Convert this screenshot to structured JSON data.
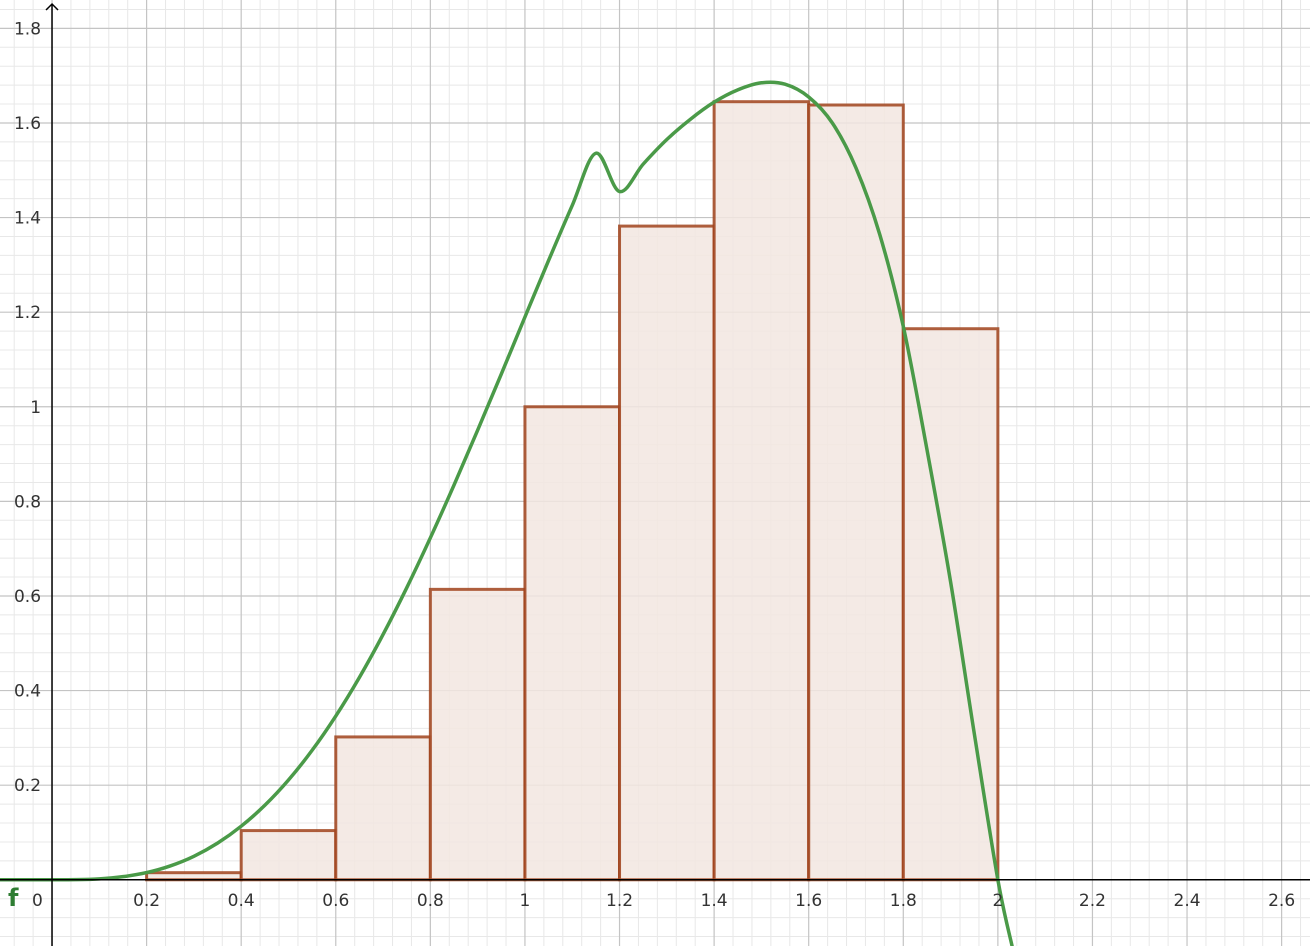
{
  "chart_data": {
    "type": "bar",
    "subtype": "riemann-sum-with-function",
    "function_label": "f",
    "origin_label": "0",
    "x_ticks": [
      "0.2",
      "0.4",
      "0.6",
      "0.8",
      "1",
      "1.2",
      "1.4",
      "1.6",
      "1.8",
      "2",
      "2.2",
      "2.4",
      "2.6"
    ],
    "y_ticks": [
      "0.2",
      "0.4",
      "0.6",
      "0.8",
      "1",
      "1.2",
      "1.4",
      "1.6",
      "1.8"
    ],
    "xlim": [
      -0.11,
      2.66
    ],
    "ylim": [
      -0.14,
      1.86
    ],
    "grid": true,
    "bars": {
      "width": 0.2,
      "x_left": [
        0.2,
        0.4,
        0.6,
        0.8,
        1.0,
        1.2,
        1.4,
        1.6,
        1.8
      ],
      "heights": [
        0.015,
        0.104,
        0.302,
        0.614,
        1.0,
        1.382,
        1.645,
        1.638,
        1.165
      ]
    },
    "curve": {
      "name": "f",
      "x": [
        -0.11,
        -0.05,
        0,
        0.05,
        0.1,
        0.15,
        0.2,
        0.25,
        0.3,
        0.35,
        0.4,
        0.45,
        0.5,
        0.55,
        0.6,
        0.65,
        0.7,
        0.75,
        0.8,
        0.85,
        0.9,
        0.95,
        1.0,
        1.05,
        1.1,
        1.15,
        1.2,
        1.25,
        1.3,
        1.35,
        1.4,
        1.45,
        1.5,
        1.55,
        1.6,
        1.65,
        1.7,
        1.75,
        1.8,
        1.85,
        1.9,
        1.95,
        2.0,
        2.03
      ],
      "y": [
        0,
        0,
        0,
        0.0003,
        0.002,
        0.0066,
        0.0152,
        0.0293,
        0.0497,
        0.0775,
        0.1133,
        0.1575,
        0.2109,
        0.2738,
        0.3462,
        0.428,
        0.5186,
        0.6173,
        0.723,
        0.8345,
        0.9504,
        1.0692,
        1.1898,
        1.3093,
        1.4256,
        1.536,
        1.455,
        1.513,
        1.565,
        1.608,
        1.644,
        1.67,
        1.685,
        1.682,
        1.655,
        1.6,
        1.505,
        1.365,
        1.17,
        0.91,
        0.63,
        0.31,
        0.0,
        -0.14
      ]
    },
    "colors": {
      "bar_fill": "#f2e6e1",
      "bar_stroke": "#a0431c",
      "curve": "#4a9a48",
      "axis": "#000000",
      "grid_major": "#c4c4c4",
      "grid_minor": "#e8e8e8"
    }
  }
}
